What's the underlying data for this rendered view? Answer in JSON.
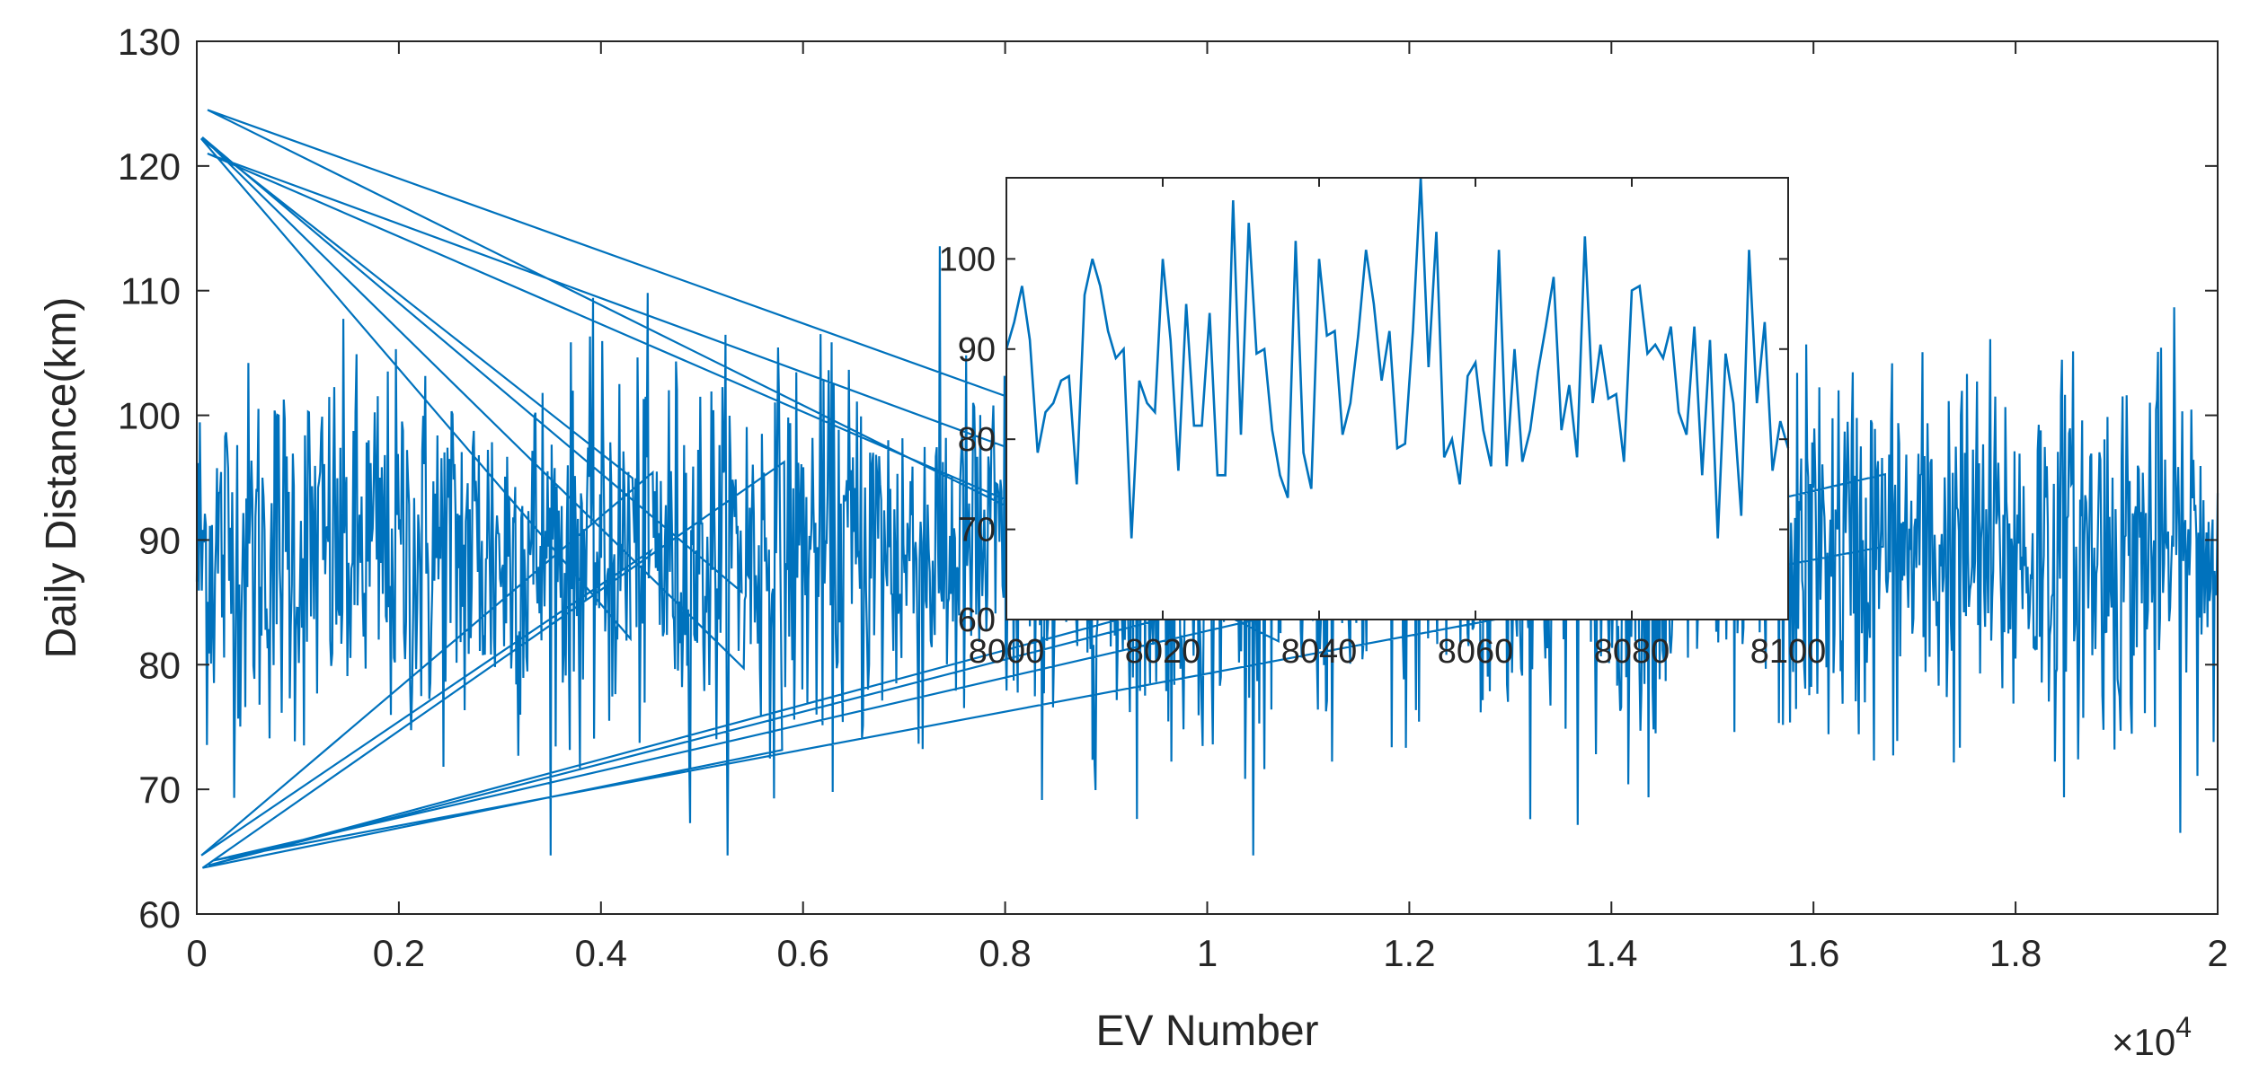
{
  "chart_data": [
    {
      "type": "line",
      "xlabel": "EV Number",
      "ylabel": "Daily Distance(km)",
      "x_exponent_label": {
        "base": "×10",
        "power": "4"
      },
      "xlim": [
        0,
        2
      ],
      "ylim": [
        60,
        130
      ],
      "x_ticks": [
        "0",
        "0.2",
        "0.4",
        "0.6",
        "0.8",
        "1",
        "1.2",
        "1.4",
        "1.6",
        "1.8",
        "2"
      ],
      "y_ticks": [
        "60",
        "70",
        "80",
        "90",
        "100",
        "110",
        "120",
        "130"
      ],
      "grid": false,
      "series_color": "#0072BD",
      "series_stats": {
        "count": 20000,
        "mean": 89,
        "min": 63.7,
        "max": 124.5
      },
      "notable_points": [
        {
          "x": 0.0107,
          "y": 124.5
        },
        {
          "x": 0.0043,
          "y": 122.2
        },
        {
          "x": 0.0054,
          "y": 122.3
        },
        {
          "x": 0.0106,
          "y": 121.0
        },
        {
          "x": 0.0058,
          "y": 63.7
        },
        {
          "x": 0.0115,
          "y": 63.9
        },
        {
          "x": 0.0045,
          "y": 64.7
        },
        {
          "x": 0.0167,
          "y": 64.3
        }
      ]
    },
    {
      "type": "line",
      "role": "inset",
      "xlim": [
        8000,
        8100
      ],
      "ylim": [
        60,
        109
      ],
      "x_ticks": [
        "8000",
        "8020",
        "8040",
        "8060",
        "8080",
        "8100"
      ],
      "y_ticks": [
        "60",
        "70",
        "80",
        "90",
        "100"
      ],
      "series_color": "#0072BD",
      "x": [
        8000,
        8001,
        8002,
        8003,
        8004,
        8005,
        8006,
        8007,
        8008,
        8009,
        8010,
        8011,
        8012,
        8013,
        8014,
        8015,
        8016,
        8017,
        8018,
        8019,
        8020,
        8021,
        8022,
        8023,
        8024,
        8025,
        8026,
        8027,
        8028,
        8029,
        8030,
        8031,
        8032,
        8033,
        8034,
        8035,
        8036,
        8037,
        8038,
        8039,
        8040,
        8041,
        8042,
        8043,
        8044,
        8045,
        8046,
        8047,
        8048,
        8049,
        8050,
        8051,
        8052,
        8053,
        8054,
        8055,
        8056,
        8057,
        8058,
        8059,
        8060,
        8061,
        8062,
        8063,
        8064,
        8065,
        8066,
        8067,
        8068,
        8069,
        8070,
        8071,
        8072,
        8073,
        8074,
        8075,
        8076,
        8077,
        8078,
        8079,
        8080,
        8081,
        8082,
        8083,
        8084,
        8085,
        8086,
        8087,
        8088,
        8089,
        8090,
        8091,
        8092,
        8093,
        8094,
        8095,
        8096,
        8097,
        8098,
        8099,
        8100
      ],
      "y": [
        90,
        93,
        97,
        91,
        78.5,
        83,
        84,
        86.5,
        87,
        75,
        96,
        100,
        97,
        92,
        89,
        90,
        69,
        86.5,
        84,
        83,
        100,
        91,
        76.5,
        95,
        81.5,
        81.5,
        94,
        76,
        76,
        106.5,
        80.5,
        104,
        89.5,
        90,
        81,
        76,
        73.5,
        102,
        78.5,
        74.5,
        100,
        91.5,
        92,
        80.5,
        84,
        91.5,
        101,
        95,
        86.5,
        92,
        79,
        79.5,
        92,
        109,
        88,
        103,
        78,
        80,
        75,
        87,
        88.5,
        81,
        77,
        101,
        77,
        90,
        77.5,
        81,
        87.5,
        92.5,
        98,
        81,
        86,
        78,
        102.5,
        84,
        90.5,
        84.5,
        85,
        77.5,
        96.5,
        97,
        89.5,
        90.5,
        89,
        92.5,
        83,
        80.5,
        92.5,
        76,
        91,
        69,
        89.5,
        84,
        71.5,
        101,
        84,
        93,
        76.5,
        82,
        79
      ]
    }
  ]
}
